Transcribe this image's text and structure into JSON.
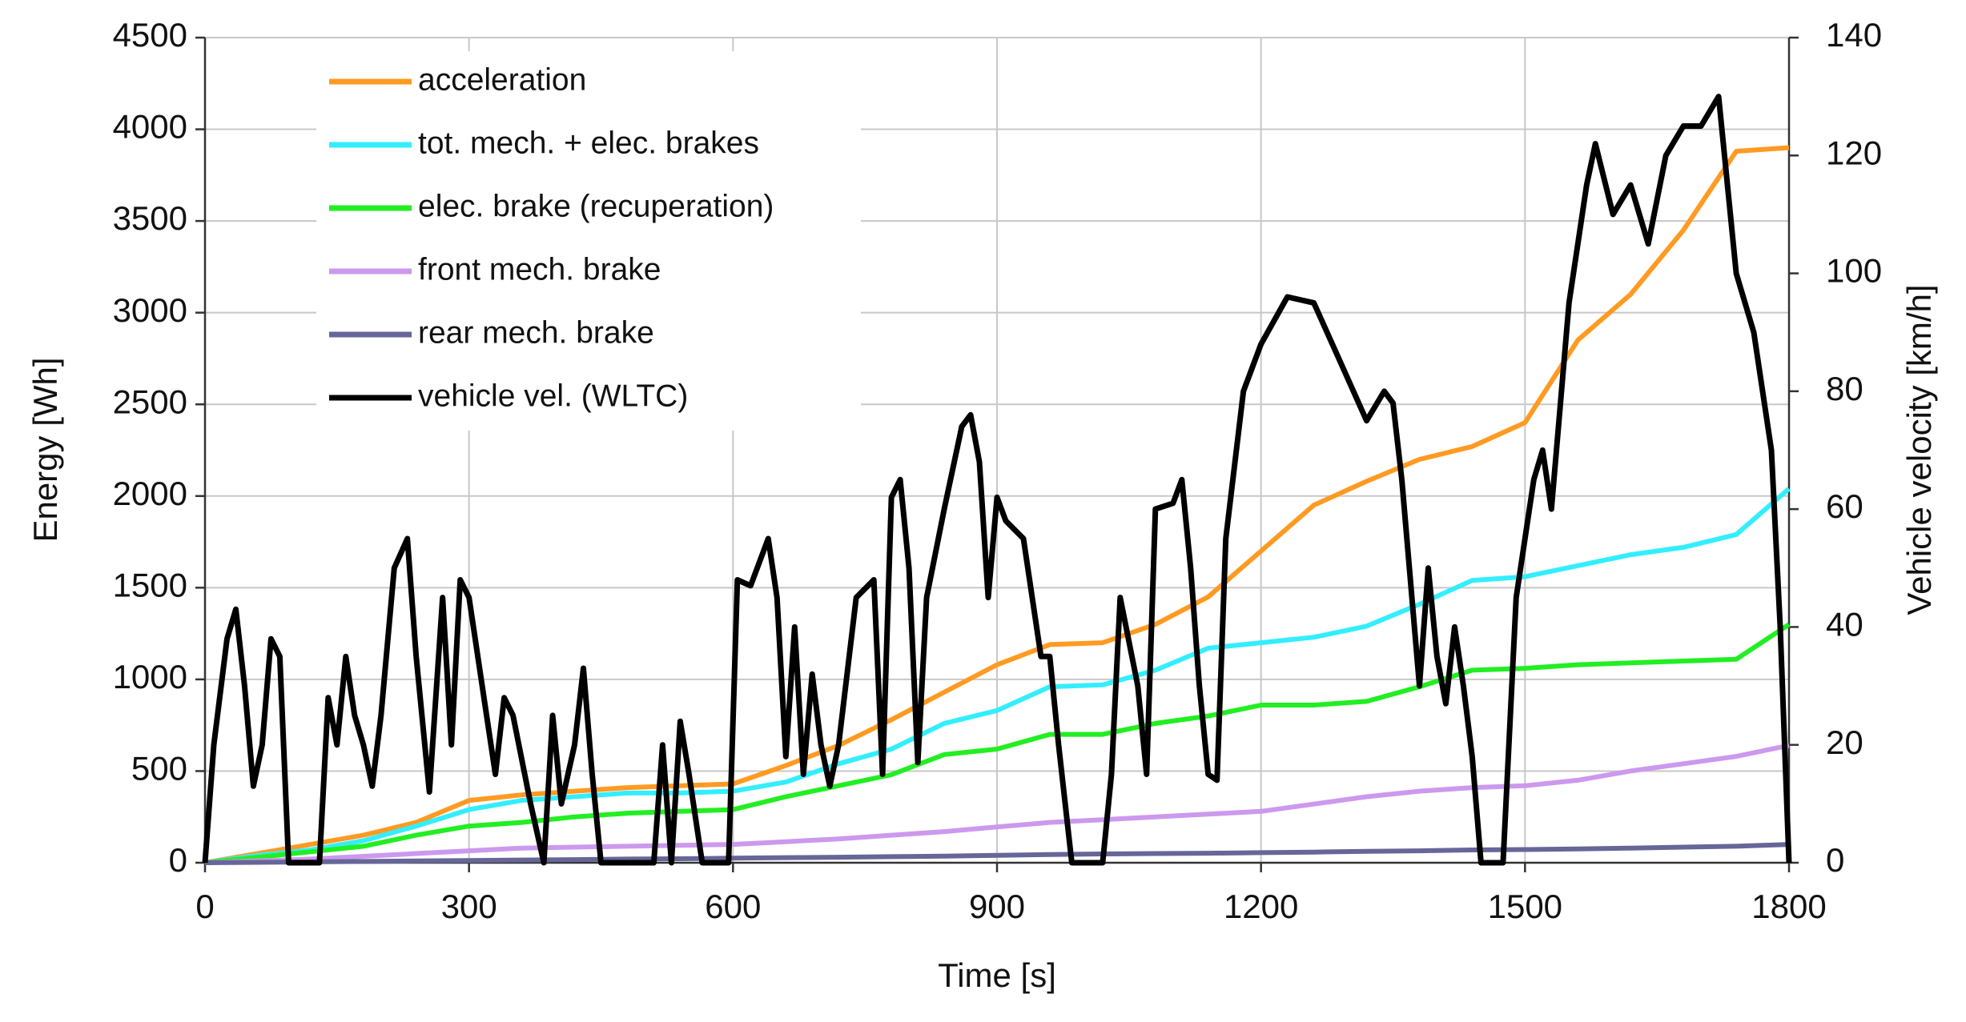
{
  "chart_data": {
    "type": "line",
    "xlabel": "Time [s]",
    "ylabel": "Energy [Wh]",
    "y2label": "Vehicle velocity [km/h]",
    "xlim": [
      0,
      1800
    ],
    "xticks": [
      0,
      300,
      600,
      900,
      1200,
      1500,
      1800
    ],
    "ylim": [
      0,
      4500
    ],
    "yticks": [
      0,
      500,
      1000,
      1500,
      2000,
      2500,
      3000,
      3500,
      4000,
      4500
    ],
    "y2lim": [
      0,
      140
    ],
    "y2ticks": [
      0,
      20,
      40,
      60,
      80,
      100,
      120,
      140
    ],
    "grid": true,
    "legend": "upper left",
    "x": [
      0,
      60,
      120,
      180,
      240,
      300,
      360,
      420,
      480,
      540,
      600,
      660,
      720,
      780,
      840,
      900,
      960,
      1020,
      1080,
      1140,
      1200,
      1260,
      1320,
      1380,
      1440,
      1500,
      1560,
      1620,
      1680,
      1740,
      1800
    ],
    "series": [
      {
        "name": "acceleration",
        "color": "#ff9a22",
        "values": [
          0,
          50,
          100,
          150,
          220,
          340,
          370,
          390,
          410,
          420,
          430,
          530,
          640,
          780,
          930,
          1080,
          1190,
          1200,
          1300,
          1450,
          1700,
          1950,
          2080,
          2200,
          2270,
          2400,
          2850,
          3100,
          3450,
          3880,
          3900
        ]
      },
      {
        "name": "tot. mech. + elec. brakes",
        "color": "#33eeff",
        "values": [
          0,
          40,
          70,
          120,
          200,
          290,
          340,
          360,
          380,
          380,
          390,
          440,
          540,
          620,
          760,
          830,
          960,
          970,
          1050,
          1170,
          1200,
          1230,
          1290,
          1410,
          1540,
          1560,
          1620,
          1680,
          1720,
          1790,
          2040
        ]
      },
      {
        "name": "elec. brake (recuperation)",
        "color": "#22ee22",
        "values": [
          0,
          30,
          60,
          90,
          150,
          200,
          220,
          250,
          270,
          280,
          290,
          360,
          420,
          480,
          590,
          620,
          700,
          700,
          760,
          800,
          860,
          860,
          880,
          960,
          1050,
          1060,
          1080,
          1090,
          1100,
          1110,
          1300
        ]
      },
      {
        "name": "front mech. brake",
        "color": "#cc99ee",
        "values": [
          0,
          10,
          20,
          35,
          50,
          65,
          80,
          85,
          90,
          95,
          100,
          115,
          130,
          150,
          170,
          195,
          220,
          235,
          250,
          265,
          280,
          320,
          360,
          390,
          410,
          420,
          450,
          500,
          540,
          580,
          640
        ]
      },
      {
        "name": "rear mech. brake",
        "color": "#666699",
        "values": [
          0,
          2,
          5,
          7,
          10,
          12,
          15,
          17,
          20,
          22,
          25,
          28,
          30,
          33,
          36,
          40,
          45,
          48,
          50,
          52,
          55,
          58,
          62,
          65,
          70,
          72,
          75,
          80,
          85,
          90,
          100
        ]
      },
      {
        "name": "vehicle vel. (WLTC)",
        "color": "#000000",
        "axis": "y2",
        "x": [
          0,
          10,
          25,
          35,
          45,
          55,
          65,
          75,
          85,
          95,
          130,
          140,
          150,
          160,
          170,
          180,
          190,
          200,
          215,
          230,
          240,
          255,
          270,
          280,
          290,
          300,
          320,
          330,
          340,
          350,
          370,
          385,
          395,
          405,
          420,
          430,
          440,
          450,
          510,
          520,
          530,
          540,
          550,
          565,
          595,
          605,
          620,
          640,
          650,
          660,
          670,
          680,
          690,
          700,
          710,
          720,
          740,
          760,
          770,
          780,
          790,
          800,
          810,
          820,
          840,
          860,
          870,
          880,
          890,
          900,
          910,
          930,
          950,
          960,
          970,
          985,
          1020,
          1030,
          1040,
          1060,
          1070,
          1080,
          1100,
          1110,
          1120,
          1130,
          1140,
          1150,
          1160,
          1180,
          1200,
          1230,
          1260,
          1290,
          1320,
          1340,
          1350,
          1360,
          1380,
          1390,
          1400,
          1410,
          1420,
          1430,
          1440,
          1450,
          1475,
          1490,
          1510,
          1520,
          1530,
          1550,
          1570,
          1580,
          1600,
          1620,
          1640,
          1660,
          1680,
          1700,
          1720,
          1740,
          1760,
          1780,
          1790,
          1800
        ],
        "values": [
          0,
          20,
          38,
          43,
          30,
          13,
          20,
          38,
          35,
          0,
          0,
          28,
          20,
          35,
          25,
          20,
          13,
          25,
          50,
          55,
          35,
          12,
          45,
          20,
          48,
          45,
          25,
          15,
          28,
          25,
          10,
          0,
          25,
          10,
          20,
          33,
          15,
          0,
          0,
          20,
          0,
          24,
          15,
          0,
          0,
          48,
          47,
          55,
          45,
          18,
          40,
          15,
          32,
          20,
          13,
          20,
          45,
          48,
          15,
          62,
          65,
          50,
          17,
          45,
          60,
          74,
          76,
          68,
          45,
          62,
          58,
          55,
          35,
          35,
          20,
          0,
          0,
          15,
          45,
          30,
          15,
          60,
          61,
          65,
          50,
          30,
          15,
          14,
          55,
          80,
          88,
          96,
          95,
          85,
          75,
          80,
          78,
          65,
          30,
          50,
          35,
          27,
          40,
          30,
          18,
          0,
          0,
          45,
          65,
          70,
          60,
          95,
          115,
          122,
          110,
          115,
          105,
          120,
          125,
          125,
          130,
          100,
          90,
          70,
          40,
          0
        ]
      }
    ]
  }
}
